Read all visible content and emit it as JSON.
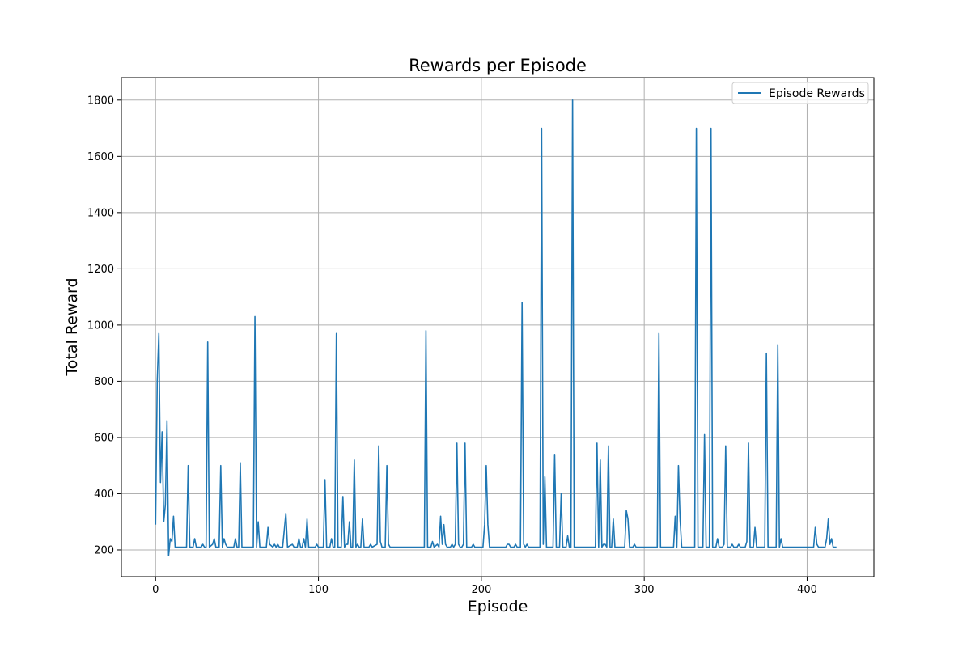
{
  "chart_data": {
    "type": "line",
    "title": "Rewards per Episode",
    "xlabel": "Episode",
    "ylabel": "Total Reward",
    "xlim": [
      -21,
      441
    ],
    "ylim": [
      105,
      1880
    ],
    "xticks": [
      0,
      100,
      200,
      300,
      400
    ],
    "yticks": [
      200,
      400,
      600,
      800,
      1000,
      1200,
      1400,
      1600,
      1800
    ],
    "grid": true,
    "legend_position": "top-right",
    "colors": {
      "line": "#1f77b4"
    },
    "series": [
      {
        "name": "Episode Rewards",
        "points": [
          [
            0,
            290
          ],
          [
            1,
            800
          ],
          [
            2,
            970
          ],
          [
            3,
            440
          ],
          [
            4,
            620
          ],
          [
            5,
            300
          ],
          [
            6,
            360
          ],
          [
            7,
            660
          ],
          [
            8,
            180
          ],
          [
            9,
            240
          ],
          [
            10,
            230
          ],
          [
            11,
            320
          ],
          [
            12,
            210
          ],
          [
            19,
            210
          ],
          [
            20,
            500
          ],
          [
            21,
            210
          ],
          [
            23,
            210
          ],
          [
            24,
            240
          ],
          [
            25,
            210
          ],
          [
            28,
            210
          ],
          [
            29,
            220
          ],
          [
            30,
            210
          ],
          [
            31,
            210
          ],
          [
            32,
            940
          ],
          [
            33,
            210
          ],
          [
            35,
            220
          ],
          [
            36,
            240
          ],
          [
            37,
            210
          ],
          [
            39,
            210
          ],
          [
            40,
            500
          ],
          [
            41,
            210
          ],
          [
            42,
            240
          ],
          [
            43,
            220
          ],
          [
            44,
            210
          ],
          [
            48,
            210
          ],
          [
            49,
            240
          ],
          [
            50,
            210
          ],
          [
            51,
            210
          ],
          [
            52,
            510
          ],
          [
            53,
            210
          ],
          [
            60,
            210
          ],
          [
            61,
            1030
          ],
          [
            62,
            210
          ],
          [
            63,
            300
          ],
          [
            64,
            210
          ],
          [
            68,
            210
          ],
          [
            69,
            280
          ],
          [
            70,
            220
          ],
          [
            72,
            210
          ],
          [
            73,
            220
          ],
          [
            74,
            210
          ],
          [
            75,
            220
          ],
          [
            76,
            210
          ],
          [
            78,
            210
          ],
          [
            80,
            330
          ],
          [
            81,
            210
          ],
          [
            84,
            220
          ],
          [
            85,
            210
          ],
          [
            87,
            210
          ],
          [
            88,
            240
          ],
          [
            89,
            210
          ],
          [
            90,
            210
          ],
          [
            91,
            240
          ],
          [
            92,
            210
          ],
          [
            93,
            310
          ],
          [
            94,
            210
          ],
          [
            98,
            210
          ],
          [
            99,
            220
          ],
          [
            100,
            210
          ],
          [
            103,
            210
          ],
          [
            104,
            450
          ],
          [
            105,
            210
          ],
          [
            107,
            210
          ],
          [
            108,
            240
          ],
          [
            109,
            210
          ],
          [
            110,
            210
          ],
          [
            111,
            970
          ],
          [
            112,
            210
          ],
          [
            114,
            210
          ],
          [
            115,
            390
          ],
          [
            116,
            210
          ],
          [
            117,
            220
          ],
          [
            118,
            220
          ],
          [
            119,
            300
          ],
          [
            120,
            210
          ],
          [
            121,
            210
          ],
          [
            122,
            520
          ],
          [
            123,
            210
          ],
          [
            124,
            220
          ],
          [
            125,
            210
          ],
          [
            126,
            210
          ],
          [
            127,
            310
          ],
          [
            128,
            210
          ],
          [
            131,
            210
          ],
          [
            132,
            220
          ],
          [
            133,
            210
          ],
          [
            136,
            220
          ],
          [
            137,
            570
          ],
          [
            138,
            230
          ],
          [
            139,
            210
          ],
          [
            140,
            210
          ],
          [
            141,
            210
          ],
          [
            142,
            500
          ],
          [
            143,
            220
          ],
          [
            144,
            210
          ],
          [
            165,
            210
          ],
          [
            166,
            980
          ],
          [
            167,
            210
          ],
          [
            169,
            210
          ],
          [
            170,
            230
          ],
          [
            171,
            210
          ],
          [
            173,
            220
          ],
          [
            174,
            210
          ],
          [
            175,
            320
          ],
          [
            176,
            220
          ],
          [
            177,
            290
          ],
          [
            178,
            220
          ],
          [
            179,
            210
          ],
          [
            181,
            210
          ],
          [
            182,
            220
          ],
          [
            183,
            210
          ],
          [
            184,
            220
          ],
          [
            185,
            580
          ],
          [
            186,
            220
          ],
          [
            187,
            210
          ],
          [
            188,
            210
          ],
          [
            189,
            220
          ],
          [
            190,
            580
          ],
          [
            191,
            210
          ],
          [
            194,
            210
          ],
          [
            195,
            220
          ],
          [
            196,
            210
          ],
          [
            201,
            210
          ],
          [
            202,
            290
          ],
          [
            203,
            500
          ],
          [
            204,
            290
          ],
          [
            205,
            210
          ],
          [
            215,
            210
          ],
          [
            216,
            220
          ],
          [
            217,
            220
          ],
          [
            218,
            210
          ],
          [
            220,
            210
          ],
          [
            221,
            220
          ],
          [
            222,
            210
          ],
          [
            224,
            210
          ],
          [
            225,
            1080
          ],
          [
            226,
            220
          ],
          [
            227,
            210
          ],
          [
            228,
            220
          ],
          [
            229,
            210
          ],
          [
            230,
            210
          ],
          [
            231,
            210
          ],
          [
            232,
            210
          ],
          [
            236,
            210
          ],
          [
            237,
            1700
          ],
          [
            238,
            220
          ],
          [
            239,
            460
          ],
          [
            240,
            210
          ],
          [
            244,
            210
          ],
          [
            245,
            540
          ],
          [
            246,
            210
          ],
          [
            248,
            210
          ],
          [
            249,
            400
          ],
          [
            250,
            210
          ],
          [
            251,
            210
          ],
          [
            252,
            210
          ],
          [
            253,
            250
          ],
          [
            254,
            210
          ],
          [
            255,
            210
          ],
          [
            256,
            1800
          ],
          [
            257,
            210
          ],
          [
            270,
            210
          ],
          [
            271,
            580
          ],
          [
            272,
            210
          ],
          [
            273,
            520
          ],
          [
            274,
            210
          ],
          [
            275,
            220
          ],
          [
            276,
            220
          ],
          [
            277,
            210
          ],
          [
            278,
            570
          ],
          [
            279,
            210
          ],
          [
            280,
            210
          ],
          [
            281,
            310
          ],
          [
            282,
            210
          ],
          [
            288,
            210
          ],
          [
            289,
            340
          ],
          [
            290,
            310
          ],
          [
            291,
            210
          ],
          [
            293,
            210
          ],
          [
            294,
            220
          ],
          [
            295,
            210
          ],
          [
            308,
            210
          ],
          [
            309,
            970
          ],
          [
            310,
            210
          ],
          [
            318,
            210
          ],
          [
            319,
            320
          ],
          [
            320,
            210
          ],
          [
            321,
            500
          ],
          [
            322,
            310
          ],
          [
            323,
            210
          ],
          [
            331,
            210
          ],
          [
            332,
            1700
          ],
          [
            333,
            210
          ],
          [
            336,
            210
          ],
          [
            337,
            610
          ],
          [
            338,
            210
          ],
          [
            340,
            210
          ],
          [
            341,
            1700
          ],
          [
            342,
            210
          ],
          [
            344,
            210
          ],
          [
            345,
            240
          ],
          [
            346,
            210
          ],
          [
            348,
            210
          ],
          [
            349,
            220
          ],
          [
            350,
            570
          ],
          [
            351,
            210
          ],
          [
            353,
            210
          ],
          [
            354,
            220
          ],
          [
            355,
            210
          ],
          [
            357,
            210
          ],
          [
            358,
            220
          ],
          [
            359,
            210
          ],
          [
            362,
            210
          ],
          [
            363,
            230
          ],
          [
            364,
            580
          ],
          [
            365,
            210
          ],
          [
            367,
            210
          ],
          [
            368,
            280
          ],
          [
            369,
            210
          ],
          [
            374,
            210
          ],
          [
            375,
            900
          ],
          [
            376,
            210
          ],
          [
            381,
            210
          ],
          [
            382,
            930
          ],
          [
            383,
            210
          ],
          [
            384,
            240
          ],
          [
            385,
            210
          ],
          [
            404,
            210
          ],
          [
            405,
            280
          ],
          [
            406,
            220
          ],
          [
            407,
            210
          ],
          [
            411,
            210
          ],
          [
            412,
            240
          ],
          [
            413,
            310
          ],
          [
            414,
            220
          ],
          [
            415,
            240
          ],
          [
            416,
            210
          ],
          [
            418,
            210
          ]
        ]
      }
    ]
  }
}
